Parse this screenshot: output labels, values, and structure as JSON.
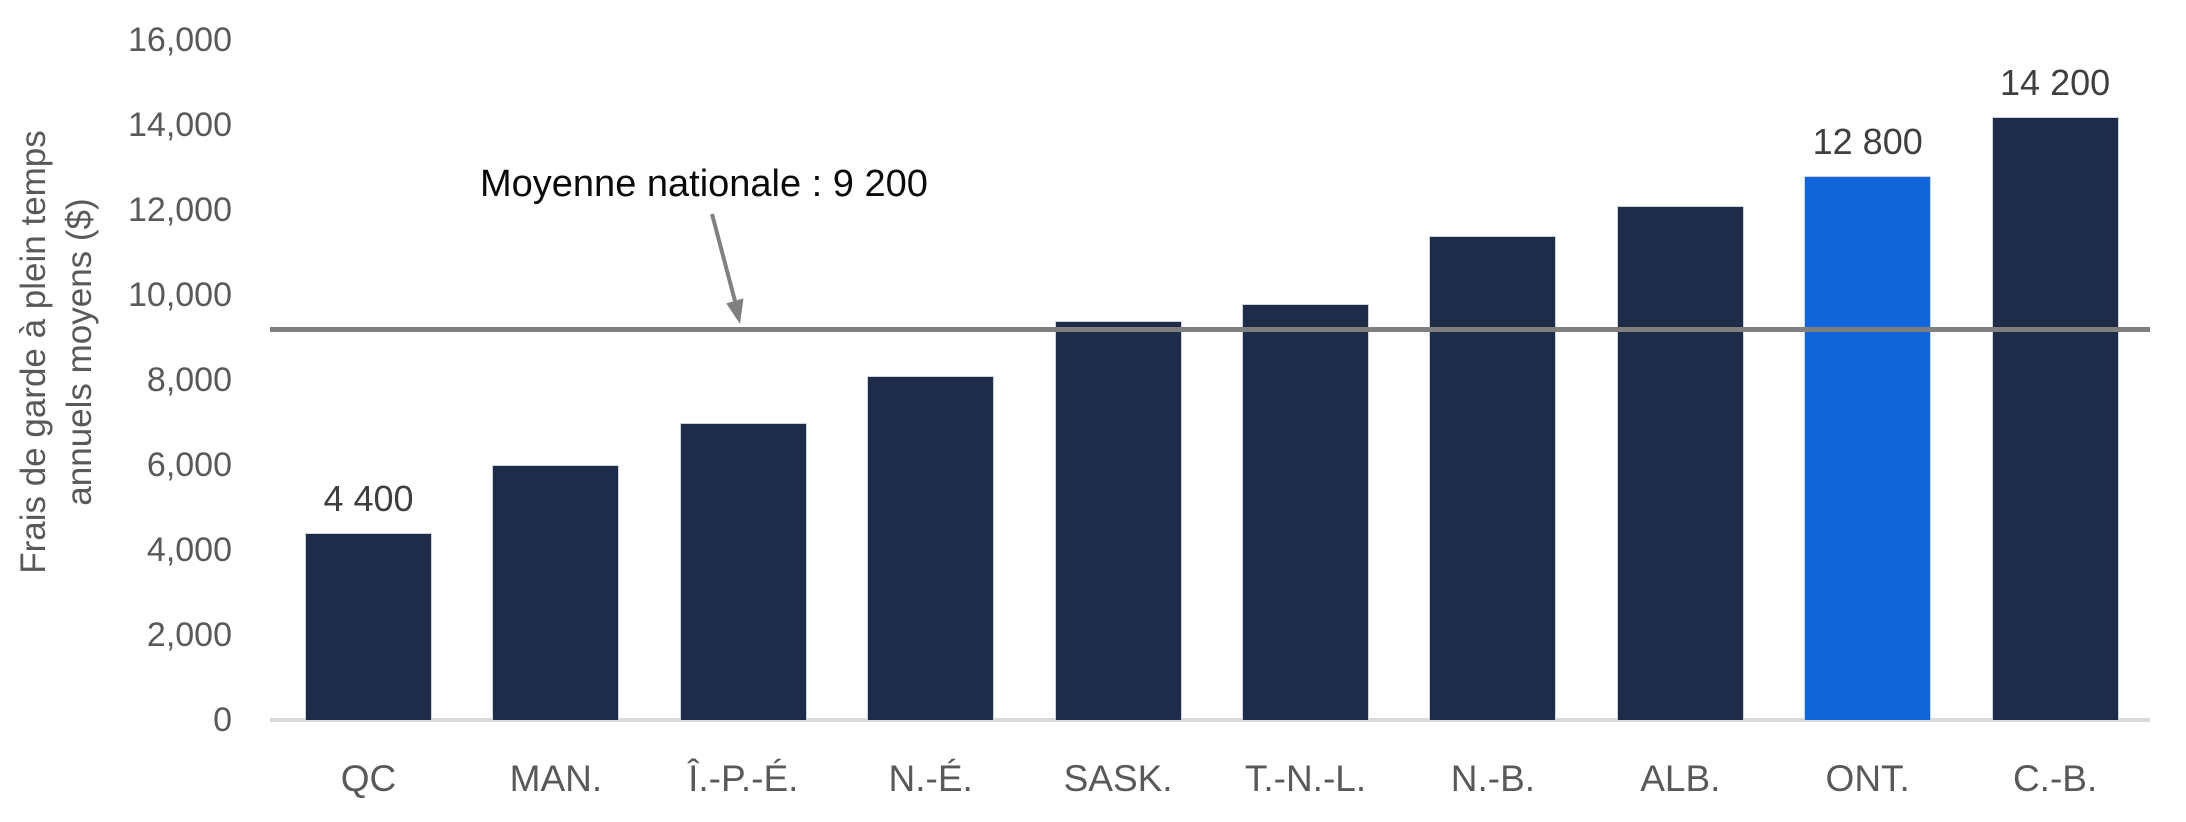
{
  "chart_data": {
    "type": "bar",
    "title": "",
    "ylabel": "Frais de garde à plein temps annuels moyens ($)",
    "ylabel_lines": [
      "Frais de garde à plein temps",
      "annuels moyens ($)"
    ],
    "xlabel": "",
    "categories": [
      "QC",
      "MAN.",
      "Î.-P.-É.",
      "N.-É.",
      "SASK.",
      "T.-N.-L.",
      "N.-B.",
      "ALB.",
      "ONT.",
      "C.-B."
    ],
    "values": [
      4400,
      6000,
      7000,
      8100,
      9400,
      9800,
      11400,
      12100,
      12800,
      14200
    ],
    "value_labels": [
      "4 400",
      null,
      null,
      null,
      null,
      null,
      null,
      null,
      "12 800",
      "14 200"
    ],
    "highlighted_index": 8,
    "highlighted_category": "ONT.",
    "reference_line": {
      "value": 9200,
      "label": "Moyenne nationale : 9 200",
      "color": "#7f7f7f"
    },
    "y_axis": {
      "min": 0,
      "max": 16000,
      "step": 2000,
      "tick_labels": [
        "0",
        "2,000",
        "4,000",
        "6,000",
        "8,000",
        "10,000",
        "12,000",
        "14,000",
        "16,000"
      ]
    },
    "grid": false,
    "legend": "none",
    "colors": {
      "bar": "#1e2c4a",
      "highlight": "#1065d8",
      "axis_line": "#d9d9d9",
      "tick_text": "#595959",
      "value_label_text": "#3f3f3f",
      "annotation_text": "#0a0a0a",
      "arrow": "#808080"
    }
  }
}
